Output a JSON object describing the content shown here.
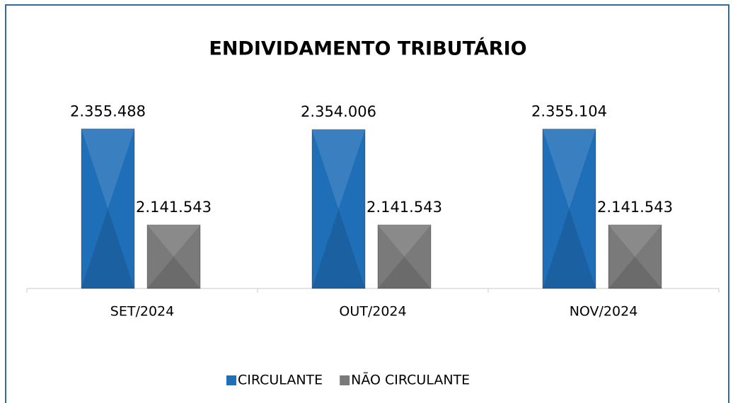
{
  "chart_data": {
    "type": "bar",
    "title": "ENDIVIDAMENTO TRIBUTÁRIO",
    "categories": [
      "SET/2024",
      "OUT/2024",
      "NOV/2024"
    ],
    "series": [
      {
        "name": "CIRCULANTE",
        "color": "#1f6fb8",
        "values": [
          2355488,
          2354006,
          2355104
        ],
        "value_labels": [
          "2.355.488",
          "2.354.006",
          "2.355.104"
        ]
      },
      {
        "name": "NÃO CIRCULANTE",
        "color": "#7a7a7a",
        "values": [
          2141543,
          2141543,
          2141543
        ],
        "value_labels": [
          "2.141.543",
          "2.141.543",
          "2.141.543"
        ]
      }
    ],
    "ylim": [
      2000000,
      2400000
    ],
    "legend": "bottom"
  }
}
